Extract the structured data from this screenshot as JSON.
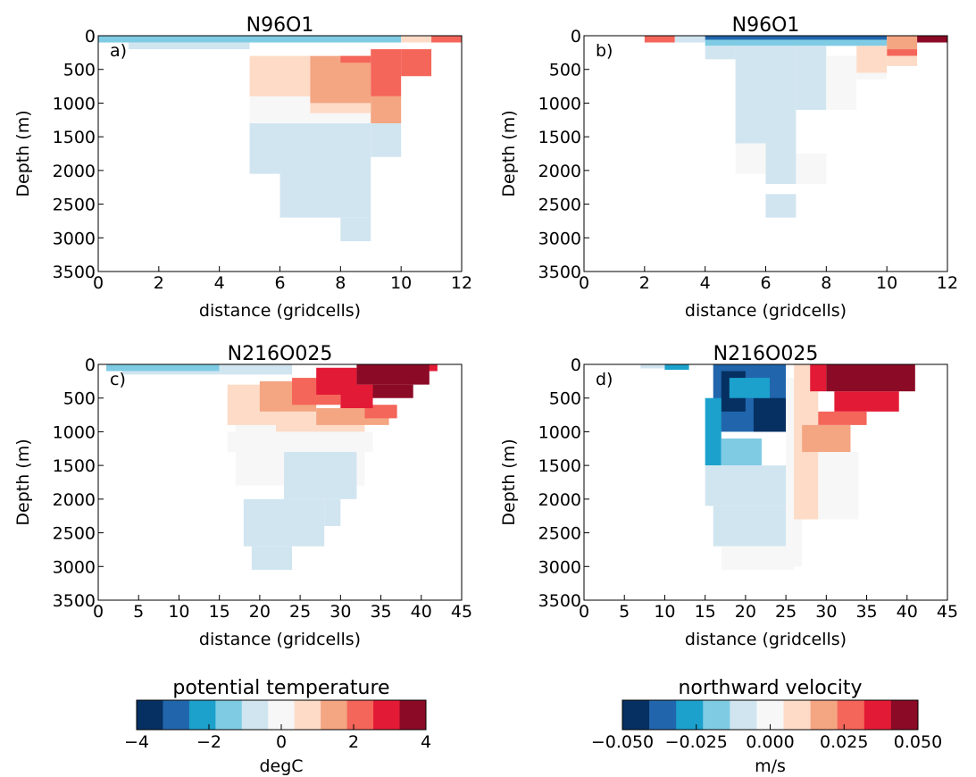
{
  "chart_data": [
    {
      "type": "heatmap",
      "title": "N96O1",
      "panel_label": "a)",
      "x_label": "distance (gridcells)",
      "y_label": "Depth (m)",
      "xlim": [
        0,
        12
      ],
      "xticks": [
        0,
        2,
        4,
        6,
        8,
        10,
        12
      ],
      "ylim": [
        0,
        3500
      ],
      "yticks": [
        0,
        500,
        1000,
        1500,
        2000,
        2500,
        3000,
        3500
      ],
      "y_inverted": true,
      "cells": [
        [
          0,
          10,
          0,
          100,
          -1.45
        ],
        [
          10,
          11,
          0,
          100,
          0.73
        ],
        [
          11,
          12,
          0,
          100,
          2.18
        ],
        [
          1,
          5,
          100,
          200,
          -0.73
        ],
        [
          5,
          10,
          900,
          1300,
          0
        ],
        [
          5,
          7,
          300,
          900,
          0.73
        ],
        [
          7,
          9,
          300,
          1000,
          1.45
        ],
        [
          8,
          9,
          300,
          400,
          2.18
        ],
        [
          9,
          10,
          200,
          900,
          2.18
        ],
        [
          9,
          10,
          900,
          1300,
          1.45
        ],
        [
          10,
          11,
          200,
          600,
          2.18
        ],
        [
          7,
          9,
          1000,
          1150,
          0.73
        ],
        [
          5,
          6,
          1300,
          2050,
          -0.73
        ],
        [
          6,
          9,
          1300,
          2700,
          -0.73
        ],
        [
          8,
          9,
          2700,
          3050,
          -0.73
        ],
        [
          9,
          10,
          1300,
          1800,
          -0.73
        ]
      ]
    },
    {
      "type": "heatmap",
      "title": "N96O1",
      "panel_label": "b)",
      "x_label": "distance (gridcells)",
      "y_label": "Depth (m)",
      "xlim": [
        0,
        12
      ],
      "xticks": [
        0,
        2,
        4,
        6,
        8,
        10,
        12
      ],
      "ylim": [
        0,
        3500
      ],
      "yticks": [
        0,
        500,
        1000,
        1500,
        2000,
        2500,
        3000,
        3500
      ],
      "y_inverted": true,
      "cells": [
        [
          2,
          3,
          0,
          100,
          0.0273
        ],
        [
          3,
          4,
          0,
          100,
          -0.0091
        ],
        [
          4,
          10,
          0,
          60,
          -0.0364
        ],
        [
          4,
          10,
          60,
          150,
          -0.0182
        ],
        [
          10,
          11,
          0,
          200,
          0.0182
        ],
        [
          10,
          11,
          200,
          300,
          0.0273
        ],
        [
          11,
          12,
          0,
          100,
          0.0455
        ],
        [
          4,
          5,
          150,
          350,
          -0.0091
        ],
        [
          5,
          6,
          150,
          1600,
          -0.0091
        ],
        [
          6,
          7,
          150,
          2200,
          -0.0091
        ],
        [
          7,
          8,
          150,
          1100,
          -0.0091
        ],
        [
          5,
          6,
          1600,
          2050,
          0
        ],
        [
          7,
          8,
          1750,
          2200,
          0
        ],
        [
          6,
          7,
          2350,
          2700,
          -0.0091
        ],
        [
          8,
          9,
          300,
          1100,
          0
        ],
        [
          9,
          10,
          150,
          550,
          0.0091
        ],
        [
          10,
          11,
          300,
          450,
          0.0091
        ],
        [
          9,
          10,
          550,
          650,
          0
        ]
      ]
    },
    {
      "type": "heatmap",
      "title": "N216O025",
      "panel_label": "c)",
      "x_label": "distance (gridcells)",
      "y_label": "Depth (m)",
      "xlim": [
        0,
        45
      ],
      "xticks": [
        0,
        5,
        10,
        15,
        20,
        25,
        30,
        35,
        40,
        45
      ],
      "ylim": [
        0,
        3500
      ],
      "yticks": [
        0,
        500,
        1000,
        1500,
        2000,
        2500,
        3000,
        3500
      ],
      "y_inverted": true,
      "cells": [
        [
          1,
          15,
          0,
          100,
          -1.45
        ],
        [
          15,
          24,
          0,
          100,
          -0.73
        ],
        [
          3,
          24,
          100,
          150,
          -0.73
        ],
        [
          16,
          34,
          1000,
          1300,
          0
        ],
        [
          17,
          22,
          900,
          1300,
          0
        ],
        [
          17,
          33,
          1300,
          1800,
          0
        ],
        [
          16,
          22,
          300,
          900,
          0.73
        ],
        [
          22,
          33,
          700,
          1000,
          0.73
        ],
        [
          20,
          27,
          250,
          700,
          1.45
        ],
        [
          27,
          36,
          650,
          900,
          1.45
        ],
        [
          24,
          30,
          200,
          600,
          2.18
        ],
        [
          33,
          37,
          600,
          800,
          2.18
        ],
        [
          27,
          32,
          50,
          450,
          2.91
        ],
        [
          30,
          34,
          300,
          650,
          2.91
        ],
        [
          37,
          42,
          0,
          100,
          2.91
        ],
        [
          32,
          41,
          0,
          300,
          3.64
        ],
        [
          34,
          39,
          300,
          500,
          3.64
        ],
        [
          23,
          32,
          1300,
          2000,
          -0.73
        ],
        [
          18,
          28,
          2000,
          2700,
          -0.73
        ],
        [
          19,
          24,
          2700,
          3050,
          -0.73
        ],
        [
          28,
          30,
          2000,
          2400,
          -0.73
        ]
      ]
    },
    {
      "type": "heatmap",
      "title": "N216O025",
      "panel_label": "d)",
      "x_label": "distance (gridcells)",
      "y_label": "Depth (m)",
      "xlim": [
        0,
        45
      ],
      "xticks": [
        0,
        5,
        10,
        15,
        20,
        25,
        30,
        35,
        40,
        45
      ],
      "ylim": [
        0,
        3500
      ],
      "yticks": [
        0,
        500,
        1000,
        1500,
        2000,
        2500,
        3000,
        3500
      ],
      "y_inverted": true,
      "cells": [
        [
          7,
          10,
          0,
          60,
          -0.0091
        ],
        [
          10,
          13,
          0,
          80,
          -0.0273
        ],
        [
          16,
          25,
          0,
          1000,
          -0.0364
        ],
        [
          17,
          20,
          100,
          700,
          -0.0455
        ],
        [
          21,
          25,
          500,
          1000,
          -0.0455
        ],
        [
          15,
          17,
          500,
          1500,
          -0.0273
        ],
        [
          18,
          23,
          200,
          500,
          -0.0273
        ],
        [
          17,
          22,
          1100,
          1500,
          -0.0182
        ],
        [
          15,
          25,
          1500,
          2100,
          -0.0091
        ],
        [
          16,
          25,
          2100,
          2700,
          -0.0091
        ],
        [
          17,
          26,
          2700,
          3050,
          0
        ],
        [
          25,
          27,
          200,
          3000,
          0
        ],
        [
          29,
          34,
          1300,
          2300,
          0
        ],
        [
          26,
          29,
          0,
          2300,
          0.0091
        ],
        [
          27,
          33,
          900,
          1300,
          0.0182
        ],
        [
          29,
          35,
          700,
          900,
          0.0273
        ],
        [
          28,
          30,
          0,
          400,
          0.0364
        ],
        [
          31,
          39,
          400,
          700,
          0.0364
        ],
        [
          30,
          41,
          0,
          400,
          0.0455
        ]
      ]
    },
    {
      "type": "colorbar",
      "title": "potential temperature",
      "label": "degC",
      "lim": [
        -4,
        4
      ],
      "ticks": [
        {
          "value": -4,
          "label": "−4"
        },
        {
          "value": -2,
          "label": "−2"
        },
        0,
        2,
        4
      ],
      "colors": [
        "#053061",
        "#2166ac",
        "#1ba1cc",
        "#7fcbe4",
        "#d1e5f0",
        "#f7f7f7",
        "#fddbc7",
        "#f4a582",
        "#f4655a",
        "#e31a35",
        "#8b0a25"
      ]
    },
    {
      "type": "colorbar",
      "title": "northward velocity",
      "label": "m/s",
      "lim": [
        -0.05,
        0.05
      ],
      "ticks": [
        {
          "value": -0.05,
          "label": "−0.050"
        },
        {
          "value": -0.025,
          "label": "−0.025"
        },
        {
          "value": 0,
          "label": "0.000"
        },
        {
          "value": 0.025,
          "label": "0.025"
        },
        {
          "value": 0.05,
          "label": "0.050"
        }
      ],
      "colors": [
        "#053061",
        "#2166ac",
        "#1ba1cc",
        "#7fcbe4",
        "#d1e5f0",
        "#f7f7f7",
        "#fddbc7",
        "#f4a582",
        "#f4655a",
        "#e31a35",
        "#8b0a25"
      ]
    }
  ]
}
